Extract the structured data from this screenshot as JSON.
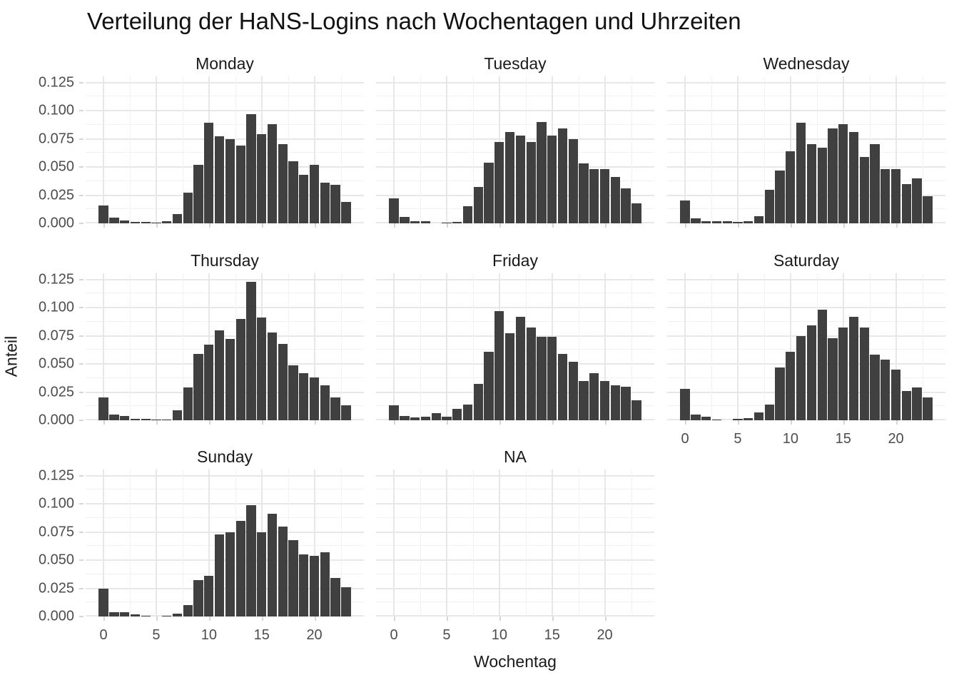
{
  "title": "Verteilung der HaNS-Logins nach Wochentagen und Uhrzeiten",
  "chart_data": {
    "type": "bar",
    "variant": "faceted-histogram",
    "title": "Verteilung der HaNS-Logins nach Wochentagen und Uhrzeiten",
    "xlabel": "Wochentag",
    "ylabel": "Anteil",
    "x": [
      0,
      1,
      2,
      3,
      4,
      5,
      6,
      7,
      8,
      9,
      10,
      11,
      12,
      13,
      14,
      15,
      16,
      17,
      18,
      19,
      20,
      21,
      22,
      23
    ],
    "xlim": [
      -1.7,
      24.7
    ],
    "ylim": [
      0,
      0.125
    ],
    "xticks": [
      0,
      5,
      10,
      15,
      20
    ],
    "xtick_labels": [
      "0",
      "5",
      "10",
      "15",
      "20"
    ],
    "yticks": [
      0,
      0.025,
      0.05,
      0.075,
      0.1,
      0.125
    ],
    "ytick_labels": [
      "0.000",
      "0.025",
      "0.050",
      "0.075",
      "0.100",
      "0.125"
    ],
    "x_minor_breaks": [
      2.5,
      7.5,
      12.5,
      17.5,
      22.5
    ],
    "grid": "major+minor",
    "legend_position": "none",
    "bar_color": "#404040",
    "grid_major_color": "#e7e7e7",
    "grid_minor_color": "#f2f2f2",
    "background": "#ffffff",
    "facets": [
      {
        "label": "Monday",
        "row": 0,
        "col": 0,
        "show_x_axis": false,
        "values": [
          0.016,
          0.005,
          0.0025,
          0.001,
          0.0015,
          0.0003,
          0.0018,
          0.0085,
          0.027,
          0.052,
          0.089,
          0.077,
          0.075,
          0.069,
          0.097,
          0.079,
          0.088,
          0.07,
          0.055,
          0.043,
          0.052,
          0.036,
          0.034,
          0.019
        ]
      },
      {
        "label": "Tuesday",
        "row": 0,
        "col": 1,
        "show_x_axis": false,
        "values": [
          0.022,
          0.006,
          0.0016,
          0.0022,
          0,
          0.0003,
          0.0014,
          0.015,
          0.032,
          0.054,
          0.072,
          0.081,
          0.078,
          0.072,
          0.09,
          0.078,
          0.084,
          0.075,
          0.053,
          0.048,
          0.048,
          0.041,
          0.031,
          0.018
        ]
      },
      {
        "label": "Wednesday",
        "row": 0,
        "col": 2,
        "show_x_axis": false,
        "values": [
          0.02,
          0.0045,
          0.0016,
          0.0018,
          0.0018,
          0.001,
          0.0022,
          0.0065,
          0.03,
          0.047,
          0.064,
          0.089,
          0.07,
          0.067,
          0.084,
          0.088,
          0.081,
          0.059,
          0.07,
          0.048,
          0.048,
          0.035,
          0.04,
          0.024
        ]
      },
      {
        "label": "Thursday",
        "row": 1,
        "col": 0,
        "show_x_axis": false,
        "values": [
          0.02,
          0.005,
          0.0035,
          0.001,
          0.001,
          0.0002,
          0.0005,
          0.009,
          0.029,
          0.059,
          0.067,
          0.08,
          0.072,
          0.09,
          0.123,
          0.091,
          0.078,
          0.068,
          0.049,
          0.042,
          0.038,
          0.031,
          0.02,
          0.013
        ]
      },
      {
        "label": "Friday",
        "row": 1,
        "col": 1,
        "show_x_axis": false,
        "values": [
          0.013,
          0.004,
          0.0027,
          0.003,
          0.0065,
          0.0033,
          0.01,
          0.014,
          0.032,
          0.061,
          0.097,
          0.077,
          0.092,
          0.082,
          0.074,
          0.074,
          0.059,
          0.052,
          0.035,
          0.042,
          0.035,
          0.031,
          0.03,
          0.018
        ]
      },
      {
        "label": "Saturday",
        "row": 1,
        "col": 2,
        "show_x_axis": true,
        "values": [
          0.028,
          0.005,
          0.003,
          0.0005,
          0,
          0.001,
          0.002,
          0.007,
          0.014,
          0.047,
          0.061,
          0.075,
          0.084,
          0.098,
          0.073,
          0.082,
          0.092,
          0.082,
          0.058,
          0.054,
          0.045,
          0.026,
          0.029,
          0.02
        ]
      },
      {
        "label": "Sunday",
        "row": 2,
        "col": 0,
        "show_x_axis": true,
        "values": [
          0.025,
          0.004,
          0.004,
          0.0017,
          0.0004,
          0,
          0.0008,
          0.0025,
          0.01,
          0.032,
          0.036,
          0.073,
          0.075,
          0.085,
          0.099,
          0.075,
          0.091,
          0.08,
          0.068,
          0.055,
          0.054,
          0.057,
          0.034,
          0.026
        ]
      },
      {
        "label": "NA",
        "row": 2,
        "col": 1,
        "show_x_axis": true,
        "values": []
      }
    ]
  }
}
